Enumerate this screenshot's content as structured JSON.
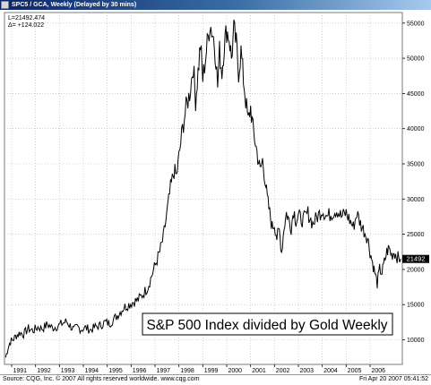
{
  "window": {
    "title": "SPC5 / GCA, Weekly (Delayed by 30 mins)",
    "stat_1": "L=21492.474",
    "stat_2": "Δ= +124.022"
  },
  "footer": {
    "source": "Source: CQG, Inc. © 2007 All rights reserved worldwide. www.cqg.com",
    "timestamp": "Fri Apr 20 2007 05:41:52"
  },
  "colors": {
    "line": "#000000",
    "plot_bg": "#ffffff",
    "grid": "#b4b4b4",
    "titlebar": "#0a246a"
  },
  "chart_data": {
    "type": "line",
    "title": "S&P 500 Index divided by Gold Weekly",
    "last_value_label": "21492",
    "yticks": [
      10000,
      15000,
      20000,
      25000,
      30000,
      35000,
      40000,
      45000,
      50000,
      55000
    ],
    "ytick_labels": [
      "10000",
      "15000",
      "20000",
      "25000",
      "30000",
      "35000",
      "40000",
      "45000",
      "50000",
      "55000"
    ],
    "ylim": [
      6500,
      56500
    ],
    "xlim": [
      1990.7,
      2007.35
    ],
    "xticks": [
      1991,
      1992,
      1993,
      1994,
      1995,
      1996,
      1997,
      1998,
      1999,
      2000,
      2001,
      2002,
      2003,
      2004,
      2005,
      2006
    ],
    "xtick_labels": [
      "1991",
      "1992",
      "1993",
      "1994",
      "1995",
      "1996",
      "1997",
      "1998",
      "1999",
      "2000",
      "2001",
      "2002",
      "2003",
      "2004",
      "2005",
      "2006"
    ],
    "grid": true,
    "x": [
      1990.75,
      1990.85,
      1990.95,
      1991.05,
      1991.2,
      1991.35,
      1991.5,
      1991.7,
      1991.9,
      1992.1,
      1992.3,
      1992.5,
      1992.7,
      1992.9,
      1993.1,
      1993.3,
      1993.45,
      1993.6,
      1993.75,
      1993.9,
      1994.1,
      1994.3,
      1994.5,
      1994.7,
      1994.9,
      1995.1,
      1995.3,
      1995.5,
      1995.7,
      1995.9,
      1996.1,
      1996.3,
      1996.5,
      1996.7,
      1996.9,
      1997.05,
      1997.2,
      1997.35,
      1997.5,
      1997.65,
      1997.8,
      1997.9,
      1998.0,
      1998.15,
      1998.3,
      1998.45,
      1998.6,
      1998.7,
      1998.8,
      1998.9,
      1999.0,
      1999.15,
      1999.3,
      1999.45,
      1999.55,
      1999.62,
      1999.7,
      1999.8,
      1999.9,
      2000.0,
      2000.1,
      2000.2,
      2000.3,
      2000.4,
      2000.5,
      2000.6,
      2000.7,
      2000.8,
      2000.9,
      2001.0,
      2001.1,
      2001.2,
      2001.3,
      2001.4,
      2001.5,
      2001.6,
      2001.7,
      2001.8,
      2001.9,
      2002.0,
      2002.1,
      2002.2,
      2002.3,
      2002.4,
      2002.5,
      2002.6,
      2002.7,
      2002.8,
      2002.9,
      2003.0,
      2003.2,
      2003.4,
      2003.6,
      2003.8,
      2004.0,
      2004.2,
      2004.4,
      2004.6,
      2004.8,
      2005.0,
      2005.15,
      2005.3,
      2005.45,
      2005.6,
      2005.75,
      2005.9,
      2006.0,
      2006.1,
      2006.2,
      2006.3,
      2006.4,
      2006.5,
      2006.6,
      2006.7,
      2006.8,
      2006.9,
      2007.0,
      2007.1,
      2007.2,
      2007.28
    ],
    "y": [
      7500,
      8900,
      9800,
      10000,
      10600,
      11000,
      10800,
      11600,
      11300,
      11800,
      11600,
      12200,
      11700,
      11900,
      12300,
      12600,
      12000,
      11400,
      11800,
      11500,
      11700,
      11400,
      11800,
      12000,
      12500,
      12300,
      13000,
      13800,
      14600,
      15000,
      15400,
      15700,
      16500,
      17500,
      19500,
      21000,
      22500,
      24500,
      28000,
      31500,
      34000,
      33200,
      36000,
      40000,
      43000,
      45000,
      49000,
      44000,
      48000,
      52000,
      47000,
      51000,
      55000,
      53000,
      50000,
      46000,
      51000,
      48000,
      52000,
      54000,
      53000,
      50000,
      54000,
      52000,
      48000,
      51000,
      47000,
      44000,
      41000,
      43000,
      40000,
      38000,
      36000,
      34000,
      35500,
      33000,
      30000,
      28000,
      26000,
      26500,
      24500,
      25500,
      22500,
      26000,
      28000,
      27000,
      26000,
      28500,
      27000,
      27500,
      27000,
      28000,
      26500,
      27500,
      28500,
      27500,
      28000,
      28500,
      27500,
      28000,
      27000,
      26000,
      28000,
      26500,
      25500,
      24500,
      22500,
      21000,
      19500,
      18000,
      20000,
      19500,
      21000,
      22500,
      23000,
      22000,
      22500,
      22000,
      21500,
      21492
    ]
  }
}
